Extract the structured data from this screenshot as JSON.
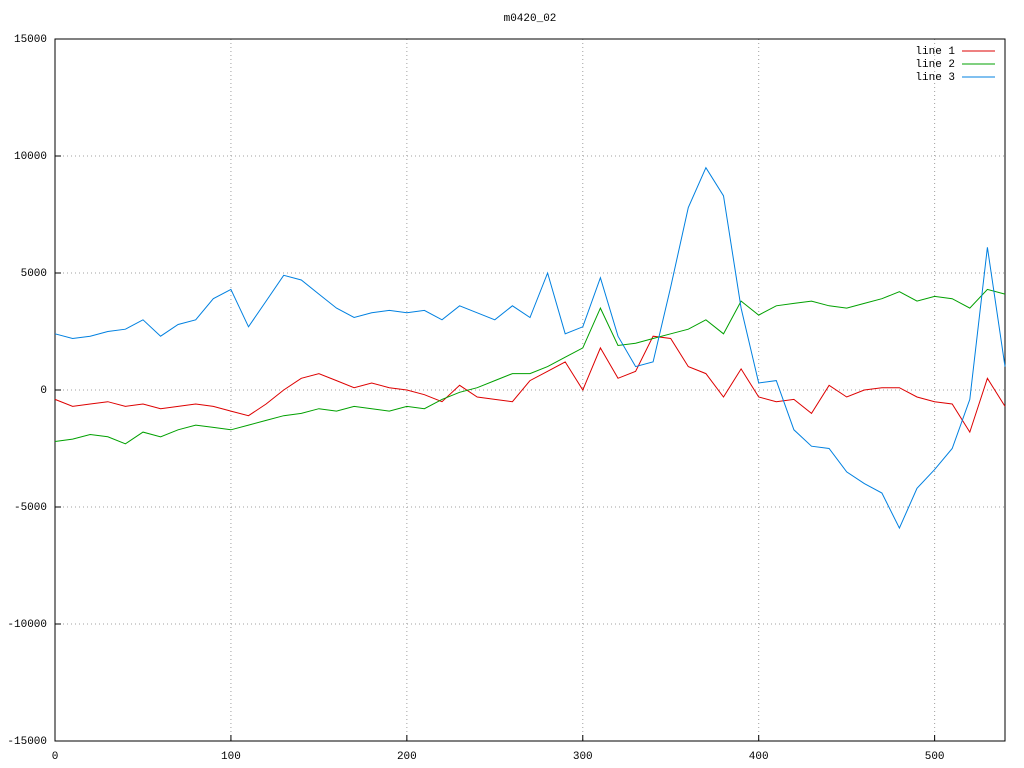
{
  "chart_data": {
    "type": "line",
    "title": "m0420_02",
    "x": [
      0,
      10,
      20,
      30,
      40,
      50,
      60,
      70,
      80,
      90,
      100,
      110,
      120,
      130,
      140,
      150,
      160,
      170,
      180,
      190,
      200,
      210,
      220,
      230,
      240,
      250,
      260,
      270,
      280,
      290,
      300,
      310,
      320,
      330,
      340,
      350,
      360,
      370,
      380,
      390,
      400,
      410,
      420,
      430,
      440,
      450,
      460,
      470,
      480,
      490,
      500,
      510,
      520,
      530,
      540
    ],
    "series": [
      {
        "name": "line 1",
        "color": "#dd0000",
        "values": [
          -400,
          -700,
          -600,
          -500,
          -700,
          -600,
          -800,
          -700,
          -600,
          -700,
          -900,
          -1100,
          -600,
          0,
          500,
          700,
          400,
          100,
          300,
          100,
          0,
          -200,
          -500,
          200,
          -300,
          -400,
          -500,
          400,
          800,
          1200,
          0,
          1800,
          500,
          800,
          2300,
          2200,
          1000,
          700,
          -300,
          900,
          -300,
          -500,
          -400,
          -1000,
          200,
          -300,
          0,
          100,
          100,
          -300,
          -500,
          -600,
          -1800,
          500,
          -700
        ]
      },
      {
        "name": "line 2",
        "color": "#00a000",
        "values": [
          -2200,
          -2100,
          -1900,
          -2000,
          -2300,
          -1800,
          -2000,
          -1700,
          -1500,
          -1600,
          -1700,
          -1500,
          -1300,
          -1100,
          -1000,
          -800,
          -900,
          -700,
          -800,
          -900,
          -700,
          -800,
          -400,
          -100,
          100,
          400,
          700,
          700,
          1000,
          1400,
          1800,
          3500,
          1900,
          2000,
          2200,
          2400,
          2600,
          3000,
          2400,
          3800,
          3200,
          3600,
          3700,
          3800,
          3600,
          3500,
          3700,
          3900,
          4200,
          3800,
          4000,
          3900,
          3500,
          4300,
          4100
        ]
      },
      {
        "name": "line 3",
        "color": "#0080e0",
        "values": [
          2400,
          2200,
          2300,
          2500,
          2600,
          3000,
          2300,
          2800,
          3000,
          3900,
          4300,
          2700,
          3800,
          4900,
          4700,
          4100,
          3500,
          3100,
          3300,
          3400,
          3300,
          3400,
          3000,
          3600,
          3300,
          3000,
          3600,
          3100,
          5000,
          2400,
          2700,
          4800,
          2300,
          1000,
          1200,
          4400,
          7800,
          9500,
          8300,
          3500,
          300,
          400,
          -1700,
          -2400,
          -2500,
          -3500,
          -4000,
          -4400,
          -5900,
          -4200,
          -3400,
          -2500,
          -400,
          6100,
          1000
        ]
      }
    ],
    "xlim": [
      0,
      540
    ],
    "xticks": [
      0,
      100,
      200,
      300,
      400,
      500
    ],
    "ylim": [
      -15000,
      15000
    ],
    "yticks": [
      -15000,
      -10000,
      -5000,
      0,
      5000,
      10000,
      15000
    ],
    "grid": true,
    "legend": "top-right"
  }
}
